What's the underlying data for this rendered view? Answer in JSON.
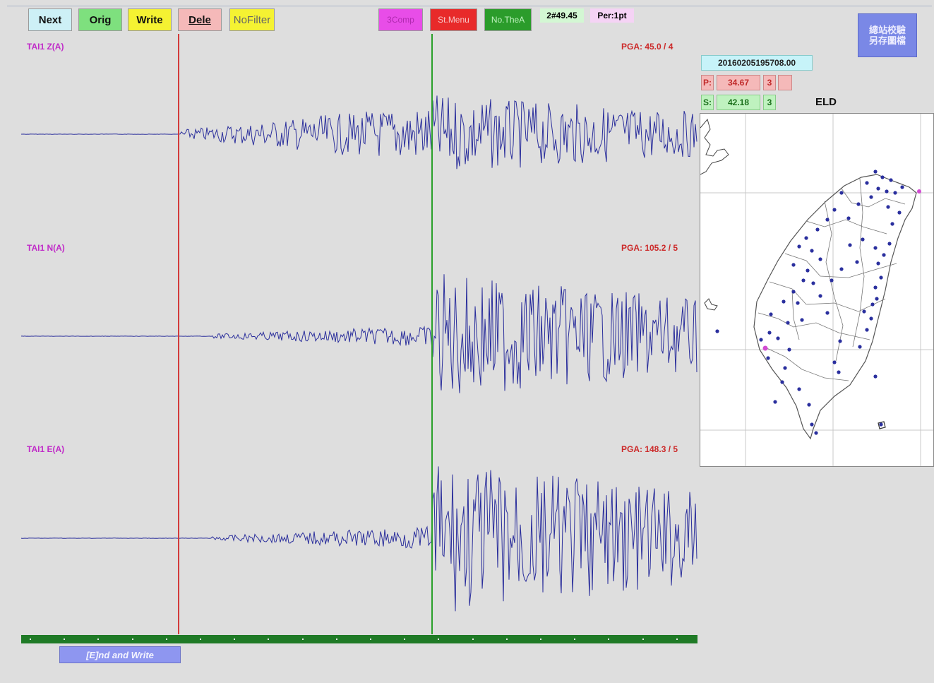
{
  "toolbar": {
    "next": "Next",
    "orig": "Orig",
    "write": "Write",
    "dele": "Dele",
    "nofilter": "NoFilter",
    "comp": "3Comp",
    "stmenu": "St.Menu",
    "nothea": "No.TheA",
    "counter": "2#49.45",
    "per": "Per:1pt"
  },
  "side_button": {
    "line1": "總站校驗",
    "line2": "另存圖檔"
  },
  "traces": [
    {
      "label": "TAI1 Z(A)",
      "pga": "PGA: 45.0 / 4"
    },
    {
      "label": "TAI1 N(A)",
      "pga": "PGA: 105.2 / 5"
    },
    {
      "label": "TAI1 E(A)",
      "pga": "PGA: 148.3 / 5"
    }
  ],
  "end_write": "[E]nd and Write",
  "event": {
    "timestamp": "20160205195708.00",
    "p_label": "P:",
    "p_value": "34.67",
    "p_weight": "3",
    "s_label": "S:",
    "s_value": "42.18",
    "s_weight": "3",
    "station": "ELD"
  },
  "colors": {
    "trace": "#2b2f9c",
    "p_line": "#d23a3a",
    "s_line": "#2aa02a",
    "timebar": "#1f7a26",
    "station_dot": "#2a2f9e",
    "epicenter": "#d24bd2"
  }
}
